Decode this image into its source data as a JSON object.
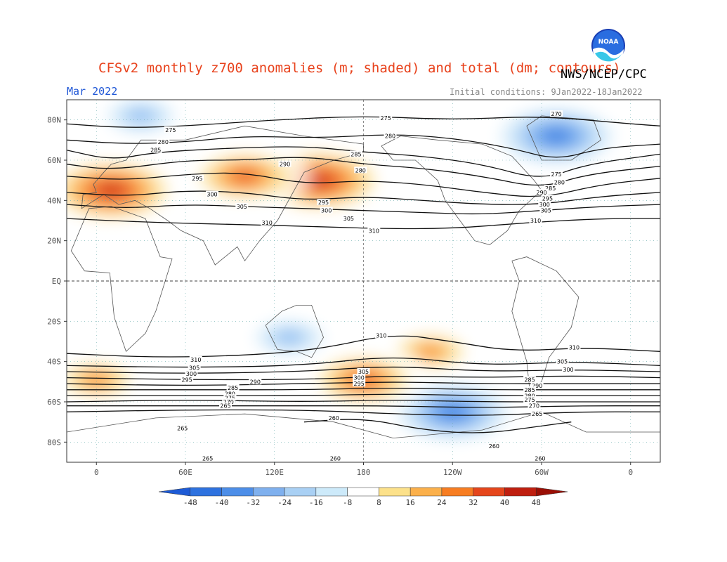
{
  "header": {
    "title": "CFSv2 monthly z700 anomalies (m; shaded) and total (dm; contours)",
    "agency": "NWS/NCEP/CPC",
    "month": "Mar 2022",
    "initial_conditions": "Initial conditions: 9Jan2022-18Jan2022",
    "logo_icon": "noaa-logo-icon"
  },
  "chart_data": {
    "type": "heatmap",
    "title": "CFSv2 monthly z700 anomalies (m; shaded) and total (dm; contours)",
    "subtitle_left": "Mar 2022",
    "subtitle_right": "Initial conditions: 9Jan2022-18Jan2022",
    "x_tick_labels": [
      "0",
      "60E",
      "120E",
      "180",
      "120W",
      "60W",
      "0"
    ],
    "x_ticks_deg": [
      0,
      60,
      120,
      180,
      240,
      300,
      360
    ],
    "xlim_deg": [
      -20,
      380
    ],
    "y_tick_labels": [
      "80N",
      "60N",
      "40N",
      "20N",
      "EQ",
      "20S",
      "40S",
      "60S",
      "80S"
    ],
    "y_ticks_deg": [
      80,
      60,
      40,
      20,
      0,
      -20,
      -40,
      -60,
      -80
    ],
    "ylim_deg": [
      -90,
      90
    ],
    "colorbar": {
      "labels": [
        "-48",
        "-40",
        "-32",
        "-24",
        "-16",
        "-8",
        "8",
        "16",
        "24",
        "32",
        "40",
        "48"
      ],
      "values": [
        -48,
        -40,
        -32,
        -24,
        -16,
        -8,
        8,
        16,
        24,
        32,
        40,
        48
      ],
      "colors": [
        "#1d5bd6",
        "#2e72df",
        "#4d8ee8",
        "#7fb0ee",
        "#a9d0f4",
        "#cdeafa",
        "#ffffff",
        "#fce18a",
        "#fbb04b",
        "#f77d22",
        "#e5461c",
        "#bf1f10",
        "#9a0f05"
      ]
    },
    "anomaly_areas": [
      {
        "label": "Atlantic-Europe ridge (positive)",
        "lon": 10,
        "lat": 45,
        "value": 48
      },
      {
        "label": "North Pacific ridge (positive)",
        "lon": 150,
        "lat": 50,
        "value": 48
      },
      {
        "label": "Central Asia ridge (positive)",
        "lon": 100,
        "lat": 52,
        "value": 40
      },
      {
        "label": "Greenland trough (negative)",
        "lon": 310,
        "lat": 72,
        "value": -40
      },
      {
        "label": "Arctic (negative)",
        "lon": 30,
        "lat": 82,
        "value": -24
      },
      {
        "label": "Australia (negative)",
        "lon": 130,
        "lat": -28,
        "value": -24
      },
      {
        "label": "South Pacific ridge (positive)",
        "lon": 225,
        "lat": -35,
        "value": 32
      },
      {
        "label": "Antarctic low (negative)",
        "lon": 240,
        "lat": -65,
        "value": -40
      },
      {
        "label": "Southern ocean band (positive)",
        "lon": 180,
        "lat": -49,
        "value": 40
      },
      {
        "label": "South Atlantic band (positive)",
        "lon": 0,
        "lat": -49,
        "value": 32
      }
    ],
    "contour_labels": [
      {
        "text": "275",
        "lon": 195,
        "lat": 81
      },
      {
        "text": "270",
        "lon": 310,
        "lat": 83
      },
      {
        "text": "275",
        "lon": 50,
        "lat": 75
      },
      {
        "text": "280",
        "lon": 198,
        "lat": 72
      },
      {
        "text": "280",
        "lon": 45,
        "lat": 69
      },
      {
        "text": "285",
        "lon": 175,
        "lat": 63
      },
      {
        "text": "285",
        "lon": 40,
        "lat": 65
      },
      {
        "text": "290",
        "lon": 127,
        "lat": 58
      },
      {
        "text": "280",
        "lon": 178,
        "lat": 55
      },
      {
        "text": "295",
        "lon": 68,
        "lat": 51
      },
      {
        "text": "300",
        "lon": 78,
        "lat": 43
      },
      {
        "text": "305",
        "lon": 98,
        "lat": 37
      },
      {
        "text": "310",
        "lon": 115,
        "lat": 29
      },
      {
        "text": "295",
        "lon": 153,
        "lat": 39
      },
      {
        "text": "300",
        "lon": 155,
        "lat": 35
      },
      {
        "text": "305",
        "lon": 170,
        "lat": 31
      },
      {
        "text": "310",
        "lon": 187,
        "lat": 25
      },
      {
        "text": "275",
        "lon": 310,
        "lat": 53
      },
      {
        "text": "280",
        "lon": 312,
        "lat": 49
      },
      {
        "text": "285",
        "lon": 306,
        "lat": 46
      },
      {
        "text": "290",
        "lon": 300,
        "lat": 44
      },
      {
        "text": "295",
        "lon": 304,
        "lat": 41
      },
      {
        "text": "300",
        "lon": 302,
        "lat": 38
      },
      {
        "text": "305",
        "lon": 303,
        "lat": 35
      },
      {
        "text": "310",
        "lon": 296,
        "lat": 30
      },
      {
        "text": "310",
        "lon": 192,
        "lat": -27
      },
      {
        "text": "310",
        "lon": 322,
        "lat": -33
      },
      {
        "text": "310",
        "lon": 67,
        "lat": -39
      },
      {
        "text": "305",
        "lon": 66,
        "lat": -43
      },
      {
        "text": "300",
        "lon": 64,
        "lat": -46
      },
      {
        "text": "295",
        "lon": 61,
        "lat": -49
      },
      {
        "text": "305",
        "lon": 314,
        "lat": -40
      },
      {
        "text": "300",
        "lon": 318,
        "lat": -44
      },
      {
        "text": "305",
        "lon": 180,
        "lat": -45
      },
      {
        "text": "300",
        "lon": 177,
        "lat": -48
      },
      {
        "text": "295",
        "lon": 177,
        "lat": -51
      },
      {
        "text": "290",
        "lon": 107,
        "lat": -50
      },
      {
        "text": "285",
        "lon": 92,
        "lat": -53
      },
      {
        "text": "280",
        "lon": 90,
        "lat": -56
      },
      {
        "text": "275",
        "lon": 90,
        "lat": -58
      },
      {
        "text": "270",
        "lon": 89,
        "lat": -60
      },
      {
        "text": "265",
        "lon": 87,
        "lat": -62
      },
      {
        "text": "285",
        "lon": 292,
        "lat": -49
      },
      {
        "text": "290",
        "lon": 297,
        "lat": -52
      },
      {
        "text": "285",
        "lon": 292,
        "lat": -54
      },
      {
        "text": "280",
        "lon": 292,
        "lat": -57
      },
      {
        "text": "275",
        "lon": 292,
        "lat": -59
      },
      {
        "text": "270",
        "lon": 295,
        "lat": -62
      },
      {
        "text": "265",
        "lon": 297,
        "lat": -66
      },
      {
        "text": "260",
        "lon": 160,
        "lat": -68
      },
      {
        "text": "265",
        "lon": 58,
        "lat": -73
      },
      {
        "text": "260",
        "lon": 268,
        "lat": -82
      },
      {
        "text": "260",
        "lon": 161,
        "lat": -88
      },
      {
        "text": "265",
        "lon": 75,
        "lat": -88
      },
      {
        "text": "260",
        "lon": 299,
        "lat": -88
      }
    ],
    "contour_lines": [
      {
        "value": 275,
        "pts": [
          [
            -20,
            78
          ],
          [
            20,
            76
          ],
          [
            60,
            77
          ],
          [
            120,
            80
          ],
          [
            180,
            82
          ],
          [
            240,
            80
          ],
          [
            300,
            82
          ],
          [
            360,
            78
          ],
          [
            380,
            77
          ]
        ]
      },
      {
        "value": 280,
        "pts": [
          [
            -20,
            70
          ],
          [
            20,
            68
          ],
          [
            60,
            69
          ],
          [
            100,
            72
          ],
          [
            150,
            71
          ],
          [
            200,
            73
          ],
          [
            240,
            71
          ],
          [
            280,
            66
          ],
          [
            310,
            60
          ],
          [
            340,
            66
          ],
          [
            380,
            68
          ]
        ]
      },
      {
        "value": 285,
        "pts": [
          [
            -20,
            65
          ],
          [
            10,
            60
          ],
          [
            40,
            64
          ],
          [
            90,
            66
          ],
          [
            140,
            67
          ],
          [
            180,
            64
          ],
          [
            220,
            62
          ],
          [
            260,
            58
          ],
          [
            300,
            50
          ],
          [
            330,
            58
          ],
          [
            380,
            63
          ]
        ]
      },
      {
        "value": 290,
        "pts": [
          [
            -20,
            58
          ],
          [
            10,
            55
          ],
          [
            60,
            60
          ],
          [
            100,
            60
          ],
          [
            140,
            62
          ],
          [
            180,
            58
          ],
          [
            220,
            56
          ],
          [
            260,
            52
          ],
          [
            300,
            46
          ],
          [
            330,
            53
          ],
          [
            380,
            57
          ]
        ]
      },
      {
        "value": 295,
        "pts": [
          [
            -20,
            52
          ],
          [
            20,
            50
          ],
          [
            60,
            53
          ],
          [
            100,
            54
          ],
          [
            140,
            48
          ],
          [
            180,
            50
          ],
          [
            220,
            48
          ],
          [
            260,
            44
          ],
          [
            300,
            41
          ],
          [
            340,
            48
          ],
          [
            380,
            51
          ]
        ]
      },
      {
        "value": 300,
        "pts": [
          [
            -20,
            44
          ],
          [
            20,
            42
          ],
          [
            60,
            45
          ],
          [
            100,
            44
          ],
          [
            140,
            40
          ],
          [
            180,
            42
          ],
          [
            220,
            40
          ],
          [
            260,
            38
          ],
          [
            300,
            38
          ],
          [
            340,
            42
          ],
          [
            380,
            44
          ]
        ]
      },
      {
        "value": 305,
        "pts": [
          [
            -20,
            38
          ],
          [
            20,
            36
          ],
          [
            60,
            38
          ],
          [
            100,
            37
          ],
          [
            140,
            36
          ],
          [
            180,
            35
          ],
          [
            220,
            34
          ],
          [
            260,
            33
          ],
          [
            300,
            35
          ],
          [
            340,
            37
          ],
          [
            380,
            38
          ]
        ]
      },
      {
        "value": 310,
        "pts": [
          [
            -20,
            31
          ],
          [
            40,
            29
          ],
          [
            100,
            28
          ],
          [
            150,
            27
          ],
          [
            190,
            26
          ],
          [
            240,
            26
          ],
          [
            290,
            29
          ],
          [
            340,
            31
          ],
          [
            380,
            31
          ]
        ]
      },
      {
        "value": 310,
        "pts": [
          [
            -20,
            -36
          ],
          [
            40,
            -38
          ],
          [
            100,
            -37
          ],
          [
            150,
            -34
          ],
          [
            200,
            -26
          ],
          [
            240,
            -30
          ],
          [
            280,
            -35
          ],
          [
            330,
            -33
          ],
          [
            380,
            -35
          ]
        ]
      },
      {
        "value": 305,
        "pts": [
          [
            -20,
            -42
          ],
          [
            60,
            -43
          ],
          [
            140,
            -42
          ],
          [
            200,
            -37
          ],
          [
            260,
            -42
          ],
          [
            320,
            -40
          ],
          [
            380,
            -42
          ]
        ]
      },
      {
        "value": 300,
        "pts": [
          [
            -20,
            -45
          ],
          [
            60,
            -46
          ],
          [
            140,
            -45
          ],
          [
            200,
            -42
          ],
          [
            260,
            -45
          ],
          [
            320,
            -44
          ],
          [
            380,
            -45
          ]
        ]
      },
      {
        "value": 295,
        "pts": [
          [
            -20,
            -48
          ],
          [
            60,
            -49
          ],
          [
            140,
            -49
          ],
          [
            200,
            -47
          ],
          [
            260,
            -48
          ],
          [
            320,
            -47
          ],
          [
            380,
            -48
          ]
        ]
      },
      {
        "value": 290,
        "pts": [
          [
            -20,
            -51
          ],
          [
            60,
            -52
          ],
          [
            140,
            -51
          ],
          [
            200,
            -50
          ],
          [
            260,
            -51
          ],
          [
            320,
            -51
          ],
          [
            380,
            -51
          ]
        ]
      },
      {
        "value": 285,
        "pts": [
          [
            -20,
            -54
          ],
          [
            60,
            -54
          ],
          [
            140,
            -54
          ],
          [
            200,
            -53
          ],
          [
            260,
            -54
          ],
          [
            320,
            -54
          ],
          [
            380,
            -54
          ]
        ]
      },
      {
        "value": 280,
        "pts": [
          [
            -20,
            -57
          ],
          [
            60,
            -57
          ],
          [
            140,
            -57
          ],
          [
            200,
            -56
          ],
          [
            260,
            -57
          ],
          [
            320,
            -57
          ],
          [
            380,
            -57
          ]
        ]
      },
      {
        "value": 275,
        "pts": [
          [
            -20,
            -60
          ],
          [
            60,
            -59
          ],
          [
            140,
            -60
          ],
          [
            200,
            -59
          ],
          [
            260,
            -60
          ],
          [
            320,
            -60
          ],
          [
            380,
            -60
          ]
        ]
      },
      {
        "value": 270,
        "pts": [
          [
            -20,
            -62
          ],
          [
            60,
            -62
          ],
          [
            140,
            -62
          ],
          [
            200,
            -62
          ],
          [
            260,
            -63
          ],
          [
            320,
            -62
          ],
          [
            380,
            -62
          ]
        ]
      },
      {
        "value": 265,
        "pts": [
          [
            -20,
            -65
          ],
          [
            60,
            -64
          ],
          [
            140,
            -64
          ],
          [
            200,
            -66
          ],
          [
            260,
            -67
          ],
          [
            320,
            -65
          ],
          [
            380,
            -65
          ]
        ]
      },
      {
        "value": 260,
        "pts": [
          [
            140,
            -70
          ],
          [
            180,
            -68
          ],
          [
            220,
            -74
          ],
          [
            260,
            -76
          ],
          [
            300,
            -72
          ],
          [
            320,
            -70
          ]
        ]
      }
    ]
  }
}
